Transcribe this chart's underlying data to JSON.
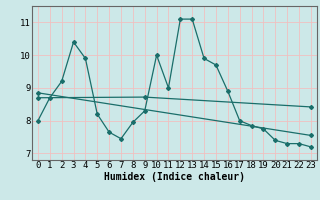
{
  "xlabel": "Humidex (Indice chaleur)",
  "bg_color": "#cce8e8",
  "grid_color": "#f0c0c0",
  "line_color": "#1a6e6a",
  "series1_x": [
    0,
    1,
    2,
    3,
    4,
    5,
    6,
    7,
    8,
    9,
    10,
    11,
    12,
    13,
    14,
    15,
    16,
    17,
    18,
    19,
    20,
    21,
    22,
    23
  ],
  "series1_y": [
    8.0,
    8.7,
    9.2,
    10.4,
    9.9,
    8.2,
    7.65,
    7.45,
    7.95,
    8.3,
    10.0,
    9.0,
    11.1,
    11.1,
    9.9,
    9.7,
    8.9,
    8.0,
    7.85,
    7.75,
    7.4,
    7.3,
    7.3,
    7.2
  ],
  "series2_x": [
    0,
    23
  ],
  "series2_y": [
    8.85,
    7.55
  ],
  "series3_x": [
    0,
    9,
    23
  ],
  "series3_y": [
    8.7,
    8.72,
    8.42
  ],
  "ylim": [
    6.8,
    11.5
  ],
  "xlim": [
    -0.5,
    23.5
  ],
  "yticks": [
    7,
    8,
    9,
    10,
    11
  ],
  "xticks": [
    0,
    1,
    2,
    3,
    4,
    5,
    6,
    7,
    8,
    9,
    10,
    11,
    12,
    13,
    14,
    15,
    16,
    17,
    18,
    19,
    20,
    21,
    22,
    23
  ],
  "fontsize_label": 7,
  "fontsize_tick": 6.5
}
